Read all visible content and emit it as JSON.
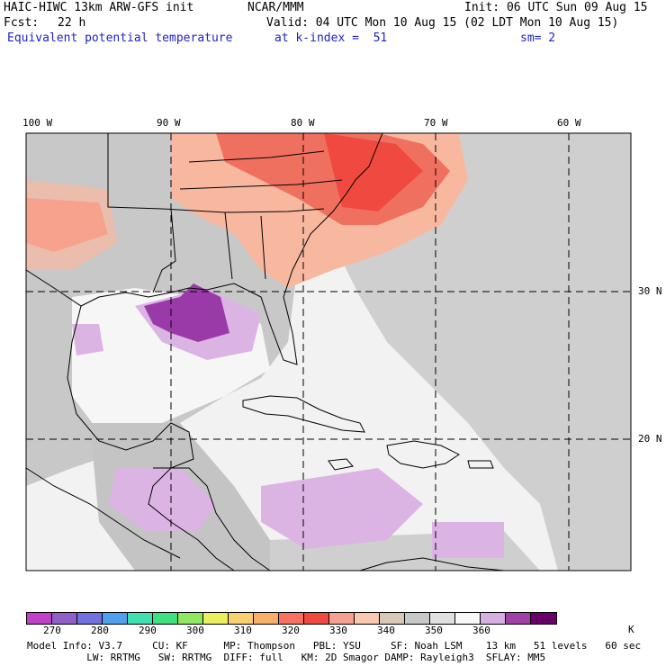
{
  "header": {
    "model": "HAIC-HIWC 13km ARW-GFS init",
    "center": "NCAR/MMM",
    "init": "Init: 06 UTC Sun 09 Aug 15",
    "fcst_label": "Fcst:",
    "fcst_value": "22 h",
    "valid": "Valid: 04 UTC Mon 10 Aug 15 (02 LDT Mon 10 Aug 15)",
    "field": "Equivalent potential temperature",
    "level": "at k-index =  51",
    "smoothing": "sm= 2"
  },
  "map": {
    "lon_labels": [
      "100 W",
      "90 W",
      "80 W",
      "70 W",
      "60 W"
    ],
    "lat_labels": [
      "30 N",
      "20 N"
    ]
  },
  "colorbar": {
    "unit": "K",
    "ticks": [
      "270",
      "280",
      "290",
      "300",
      "310",
      "320",
      "330",
      "340",
      "350",
      "360"
    ],
    "colors": [
      "#c040c8",
      "#9060c8",
      "#7070e0",
      "#50a0f0",
      "#40e0b0",
      "#40e080",
      "#90e860",
      "#e8f060",
      "#f8d070",
      "#f8b068",
      "#f87060",
      "#f04a40",
      "#f8a090",
      "#f8c8b0",
      "#d8c8b8",
      "#c8c8c8",
      "#e0e0e0",
      "#f8f8f8",
      "#d8b0e0",
      "#a040a8",
      "#6a006a"
    ]
  },
  "footer": {
    "line1": "Model Info: V3.7     CU: KF      MP: Thompson   PBL: YSU     SF: Noah LSM    13 km   51 levels   60 sec",
    "line2": "          LW: RRTMG   SW: RRTMG  DIFF: full   KM: 2D Smagor DAMP: Rayleigh3  SFLAY: MM5"
  }
}
